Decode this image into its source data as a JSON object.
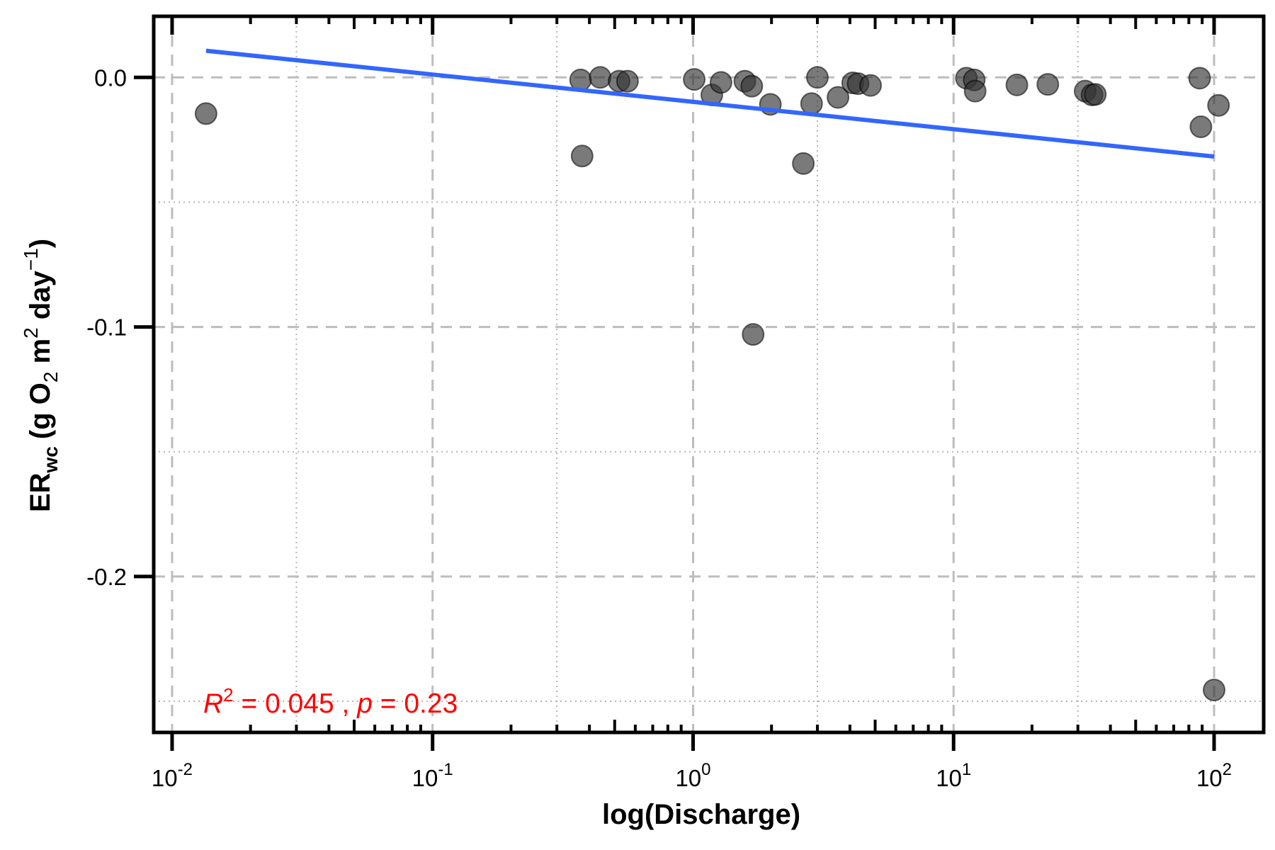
{
  "chart_data": {
    "type": "scatter",
    "title": "",
    "xlabel": "log(Discharge)",
    "ylabel": {
      "main": "ER",
      "sub": "wc",
      "open": "(g O",
      "o_sub": "2",
      "m": " m",
      "m_sup": "2",
      "day": " day",
      "day_sup": "−1",
      "close": ")"
    },
    "x_scale": "log10",
    "xlim": [
      0.0085,
      155
    ],
    "ylim": [
      -0.2625,
      0.0245
    ],
    "x_ticks": [
      {
        "value": 0.01,
        "base": "10",
        "exp": "-2"
      },
      {
        "value": 0.1,
        "base": "10",
        "exp": "-1"
      },
      {
        "value": 1,
        "base": "10",
        "exp": "0"
      },
      {
        "value": 10,
        "base": "10",
        "exp": "1"
      },
      {
        "value": 100,
        "base": "10",
        "exp": "2"
      }
    ],
    "y_ticks": [
      {
        "value": 0.0,
        "label": "0.0"
      },
      {
        "value": -0.1,
        "label": "-0.1"
      },
      {
        "value": -0.2,
        "label": "-0.2"
      }
    ],
    "y_minor_grid": [
      -0.05,
      -0.15,
      -0.25
    ],
    "x_minor_grid": [
      0.03,
      0.3,
      3,
      30
    ],
    "grid": true,
    "series": [
      {
        "color": "#333333",
        "points": [
          {
            "x": 0.0135,
            "y": -0.0145
          },
          {
            "x": 0.37,
            "y": -0.001
          },
          {
            "x": 0.375,
            "y": -0.0315
          },
          {
            "x": 0.44,
            "y": 0.0
          },
          {
            "x": 0.52,
            "y": -0.0015
          },
          {
            "x": 0.56,
            "y": -0.0015
          },
          {
            "x": 1.01,
            "y": -0.0008
          },
          {
            "x": 1.18,
            "y": -0.007
          },
          {
            "x": 1.28,
            "y": -0.002
          },
          {
            "x": 1.58,
            "y": -0.0015
          },
          {
            "x": 1.68,
            "y": -0.0035
          },
          {
            "x": 1.7,
            "y": -0.103
          },
          {
            "x": 1.98,
            "y": -0.0108
          },
          {
            "x": 2.65,
            "y": -0.0345
          },
          {
            "x": 2.85,
            "y": -0.0105
          },
          {
            "x": 3.0,
            "y": 0.0
          },
          {
            "x": 3.6,
            "y": -0.008
          },
          {
            "x": 4.1,
            "y": -0.0022
          },
          {
            "x": 4.3,
            "y": -0.0025
          },
          {
            "x": 4.8,
            "y": -0.0032
          },
          {
            "x": 11.2,
            "y": -0.0003
          },
          {
            "x": 12.0,
            "y": -0.001
          },
          {
            "x": 12.1,
            "y": -0.0055
          },
          {
            "x": 17.5,
            "y": -0.003
          },
          {
            "x": 23.0,
            "y": -0.0028
          },
          {
            "x": 32.0,
            "y": -0.0055
          },
          {
            "x": 34.0,
            "y": -0.007
          },
          {
            "x": 35.0,
            "y": -0.0068
          },
          {
            "x": 88.0,
            "y": -0.0003
          },
          {
            "x": 89.0,
            "y": -0.0198
          },
          {
            "x": 100.0,
            "y": -0.2455
          },
          {
            "x": 104.0,
            "y": -0.0112
          }
        ]
      }
    ],
    "fit_line": {
      "color": "#3366ff",
      "x": [
        0.0135,
        100
      ],
      "y": [
        0.0107,
        -0.0317
      ]
    },
    "annotation": {
      "color": "#ff0000",
      "r": "R",
      "r_sup": "2",
      "text": " = 0.045 , ",
      "p": "p",
      "p_text": " = 0.23"
    }
  }
}
